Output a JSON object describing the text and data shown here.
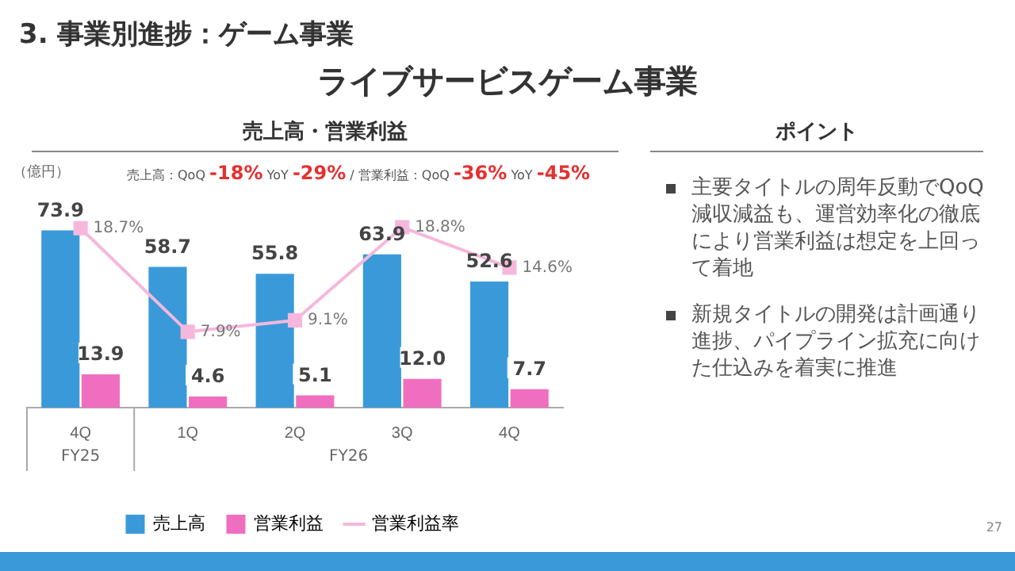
{
  "chart_data": {
    "type": "bar",
    "title": "3. 事業別進捗：ゲーム事業",
    "subtitle": "ライブサービスゲーム事業",
    "ylabel": "（億円）",
    "categories": [
      "4Q",
      "1Q",
      "2Q",
      "3Q",
      "4Q"
    ],
    "series": [
      {
        "name": "売上高",
        "color": "#3a9ad9",
        "values": [
          73.9,
          58.7,
          55.8,
          63.9,
          52.6
        ],
        "value_labels": [
          "73.9",
          "58.7",
          "55.8",
          "63.9",
          "52.6"
        ]
      },
      {
        "name": "営業利益",
        "color": "#f06ec0",
        "values": [
          13.9,
          4.6,
          5.1,
          12.0,
          7.7
        ],
        "value_labels": [
          "13.9",
          "4.6",
          "5.1",
          "12.0",
          "7.7"
        ]
      },
      {
        "name": "営業利益率",
        "type": "line",
        "axis": "y2",
        "color": "#f5b8dc",
        "values": [
          18.7,
          7.9,
          9.1,
          18.8,
          14.6
        ],
        "value_labels": [
          "18.7%",
          "7.9%",
          "9.1%",
          "18.8%",
          "14.6%"
        ]
      }
    ],
    "tick_labels": "x",
    "grid": false,
    "legend": "bottom",
    "marker": "square",
    "annotations": [
      "売上高・営業利益",
      "売上高：QoQ -18% YoY -29% / 営業利益：QoQ -36% YoY -45%",
      "FY25",
      "FY26",
      "ポイント",
      "主要タイトルの周年反動でQoQ減収減益も、運営効率化の徹底により営業利益は想定を上回って着地",
      "新規タイトルの開発は計画通り進捗、パイプライン拡充に向けた仕込みを着実に推進",
      "27"
    ]
  }
}
